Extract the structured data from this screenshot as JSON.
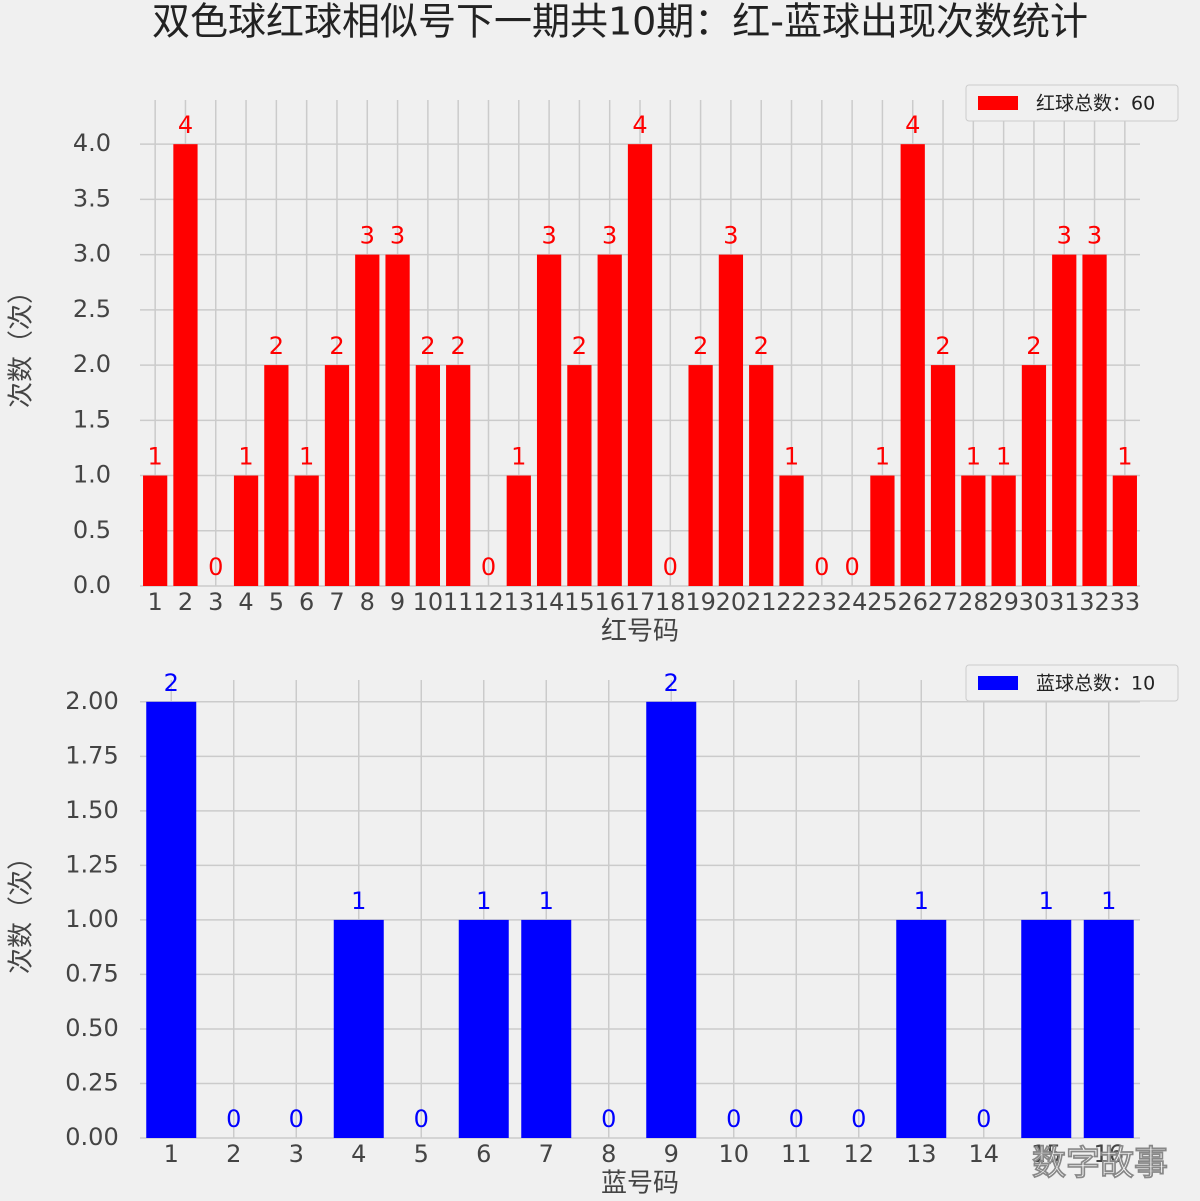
{
  "watermark": "数字故事",
  "chart_data": [
    {
      "type": "bar",
      "title": "双色球红球相似号下一期共10期：红-蓝球出现次数统计",
      "xlabel": "红号码",
      "ylabel": "次数（次）",
      "categories": [
        "1",
        "2",
        "3",
        "4",
        "5",
        "6",
        "7",
        "8",
        "9",
        "10",
        "11",
        "12",
        "13",
        "14",
        "15",
        "16",
        "17",
        "18",
        "19",
        "20",
        "21",
        "22",
        "23",
        "24",
        "25",
        "26",
        "27",
        "28",
        "29",
        "30",
        "31",
        "32",
        "33"
      ],
      "series": [
        {
          "name": "红球总数：60",
          "color": "#ff0000",
          "values": [
            1,
            4,
            0,
            1,
            2,
            1,
            2,
            3,
            3,
            2,
            2,
            0,
            1,
            3,
            2,
            3,
            4,
            0,
            2,
            3,
            2,
            1,
            0,
            0,
            1,
            4,
            2,
            1,
            1,
            2,
            3,
            3,
            1
          ]
        }
      ],
      "ylim": [
        0,
        4.4
      ],
      "yticks": [
        {
          "value": 0,
          "label": "0.0"
        },
        0.5,
        {
          "value": 1,
          "label": "1.0"
        },
        1.5,
        {
          "value": 2,
          "label": "2.0"
        },
        2.5,
        {
          "value": 3,
          "label": "3.0"
        },
        3.5,
        {
          "value": 4,
          "label": "4.0"
        }
      ],
      "grid": true,
      "legend": "upper right"
    },
    {
      "type": "bar",
      "xlabel": "蓝号码",
      "ylabel": "次数（次）",
      "categories": [
        "1",
        "2",
        "3",
        "4",
        "5",
        "6",
        "7",
        "8",
        "9",
        "10",
        "11",
        "12",
        "13",
        "14",
        "15",
        "16"
      ],
      "series": [
        {
          "name": "蓝球总数：10",
          "color": "#0000ff",
          "values": [
            2,
            0,
            0,
            1,
            0,
            1,
            1,
            0,
            2,
            0,
            0,
            0,
            1,
            0,
            1,
            1
          ]
        }
      ],
      "ylim": [
        0,
        2.1
      ],
      "yticks": [
        {
          "value": 0,
          "label": "0.00"
        },
        0.25,
        {
          "value": 0.5,
          "label": "0.50"
        },
        0.75,
        {
          "value": 1,
          "label": "1.00"
        },
        1.25,
        {
          "value": 1.5,
          "label": "1.50"
        },
        1.75,
        {
          "value": 2,
          "label": "2.00"
        }
      ],
      "grid": true,
      "legend": "upper right"
    }
  ]
}
